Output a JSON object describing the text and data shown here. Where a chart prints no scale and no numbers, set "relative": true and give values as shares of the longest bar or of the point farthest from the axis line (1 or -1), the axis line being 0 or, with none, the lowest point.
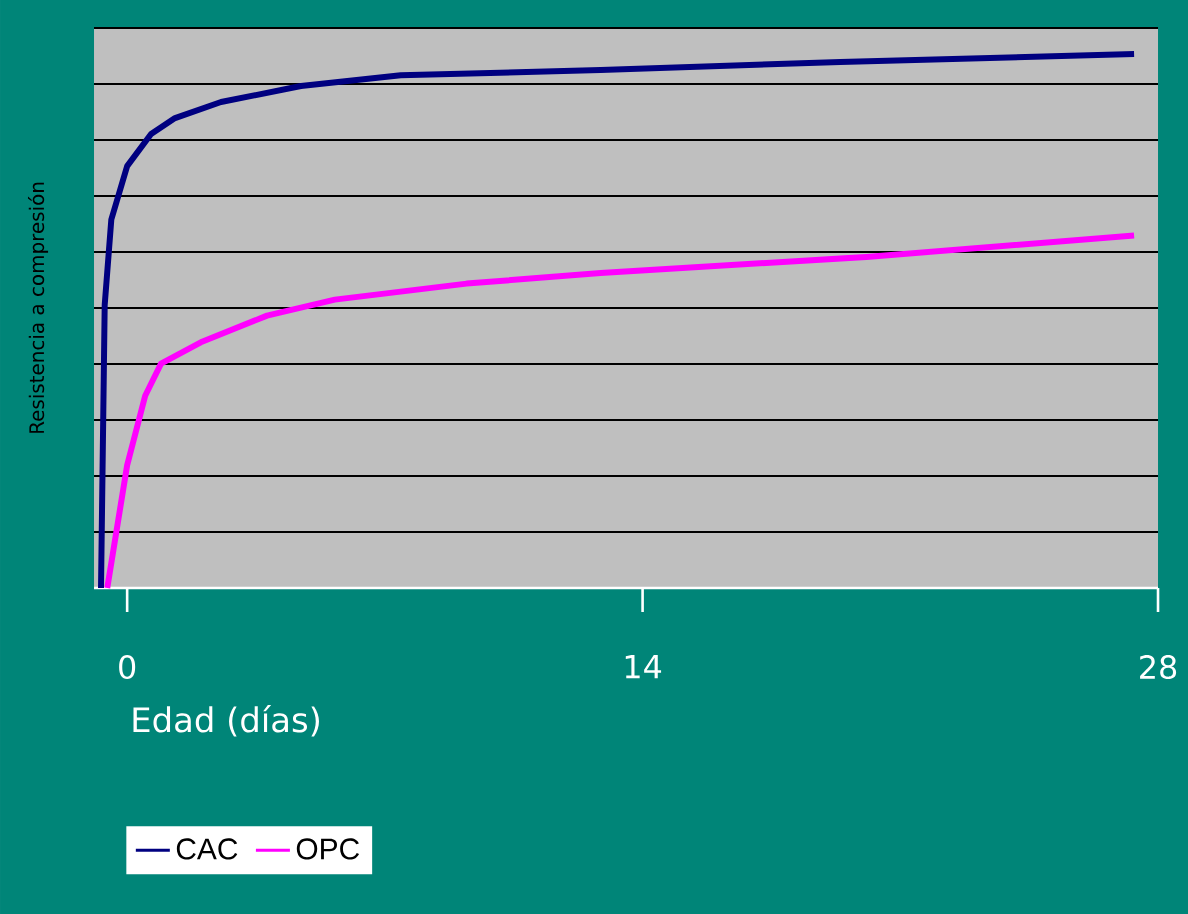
{
  "chart_data": {
    "type": "line",
    "relative": true,
    "xlabel": "Edad (días)",
    "ylabel": "Resistencia a compresión",
    "xlim": [
      -0.9,
      28
    ],
    "xticks": [
      0,
      14,
      28
    ],
    "grid": "y",
    "tick_labels": "x",
    "legend": "bottom left",
    "line_style": "solid",
    "series": [
      {
        "name": "CAC",
        "color": "#000080",
        "x": [
          -0.71,
          -0.61,
          -0.43,
          0,
          0.65,
          1.3,
          2.55,
          4.72,
          7.43,
          12.86,
          19.37,
          27.35
        ],
        "values": [
          0,
          0.53,
          0.69,
          0.79,
          0.85,
          0.88,
          0.91,
          0.94,
          0.96,
          0.97,
          0.985,
          1
        ]
      },
      {
        "name": "OPC",
        "color": "#ff00ff",
        "x": [
          -0.54,
          0,
          0.49,
          0.92,
          2.0,
          3.8,
          5.64,
          9.22,
          12.86,
          20.08,
          27.35
        ],
        "values": [
          0,
          0.23,
          0.36,
          0.42,
          0.46,
          0.51,
          0.54,
          0.57,
          0.59,
          0.62,
          0.66
        ]
      }
    ]
  }
}
